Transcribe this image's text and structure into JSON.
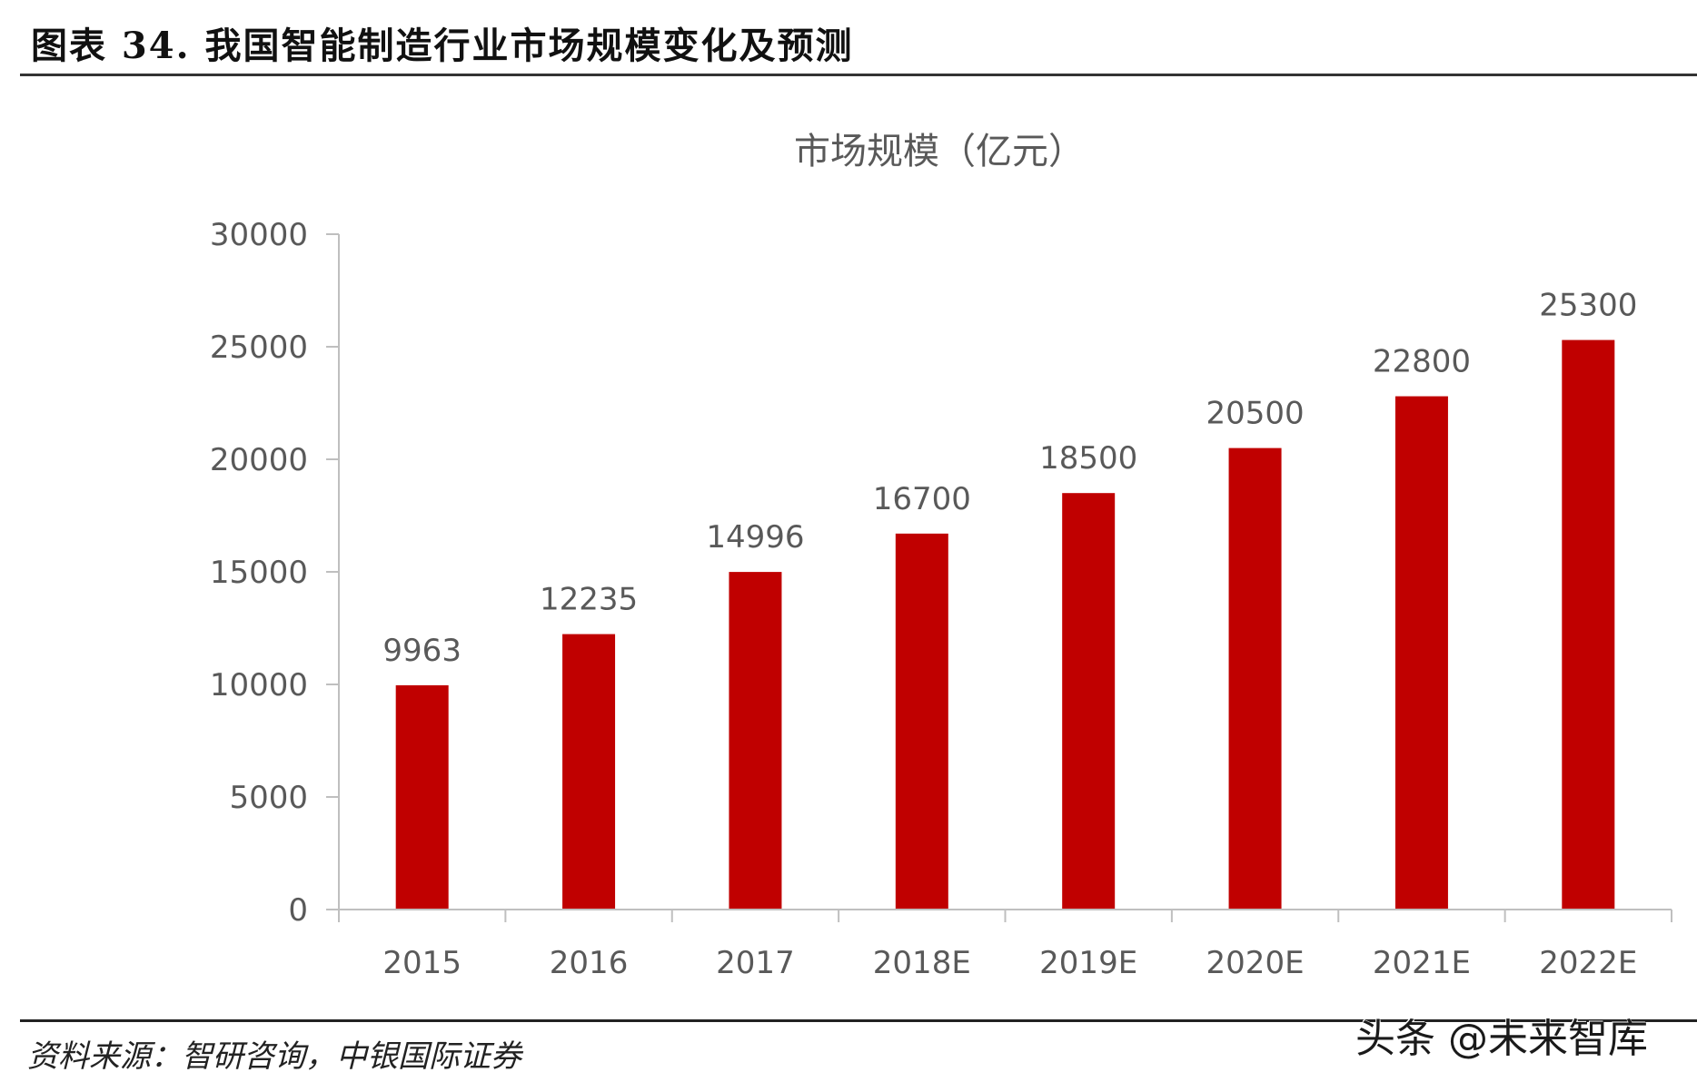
{
  "figure": {
    "title": "图表 34. 我国智能制造行业市场规模变化及预测",
    "source": "资料来源：智研咨询，中银国际证券",
    "watermark": "头条 @未来智库"
  },
  "colors": {
    "bar": "#C00000",
    "axis": "#BFBFBF",
    "text": "#595959"
  },
  "chart_data": {
    "type": "bar",
    "title": "市场规模（亿元）",
    "categories": [
      "2015",
      "2016",
      "2017",
      "2018E",
      "2019E",
      "2020E",
      "2021E",
      "2022E"
    ],
    "values": [
      9963,
      12235,
      14996,
      16700,
      18500,
      20500,
      22800,
      25300
    ],
    "data_labels": [
      "9963",
      "12235",
      "14996",
      "16700",
      "18500",
      "20500",
      "22800",
      "25300"
    ],
    "xlabel": "",
    "ylabel": "",
    "ylim": [
      0,
      30000
    ],
    "yticks": [
      0,
      5000,
      10000,
      15000,
      20000,
      25000,
      30000
    ],
    "grid": false,
    "legend": null
  }
}
